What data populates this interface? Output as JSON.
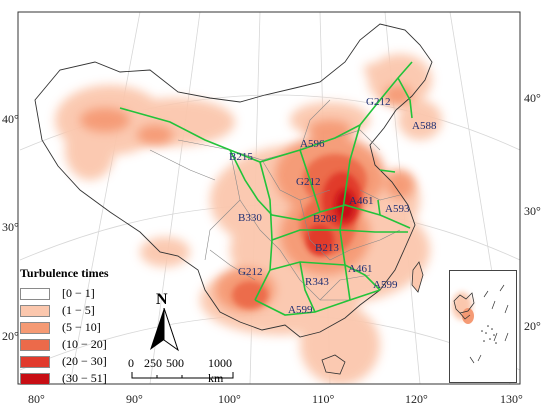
{
  "map": {
    "lon_ticks_bottom": [
      "80°",
      "90°",
      "100°",
      "110°",
      "120°",
      "130°"
    ],
    "lat_ticks_left": [
      "40°",
      "30°",
      "20°"
    ],
    "lat_ticks_right": [
      "40°",
      "30°",
      "20°"
    ],
    "route_labels": [
      "G212",
      "A588",
      "A596",
      "B215",
      "G212",
      "A461",
      "A593",
      "B330",
      "B208",
      "B213",
      "A461",
      "G212",
      "R343",
      "A599",
      "A599"
    ],
    "route_color": "#22c33a",
    "heat_colors": [
      "#ffffff",
      "#fbc7ad",
      "#f59a74",
      "#ec6a4a",
      "#e13a2c",
      "#c80e14"
    ]
  },
  "legend": {
    "title": "Turbulence times",
    "items": [
      "[0 − 1]",
      "(1 − 5]",
      "(5 − 10]",
      "(10 − 20]",
      "(20 − 30]",
      "(30 − 51]"
    ]
  },
  "north": {
    "label": "N"
  },
  "scale": {
    "values": [
      "0",
      "250",
      "500",
      "1000 km"
    ]
  }
}
